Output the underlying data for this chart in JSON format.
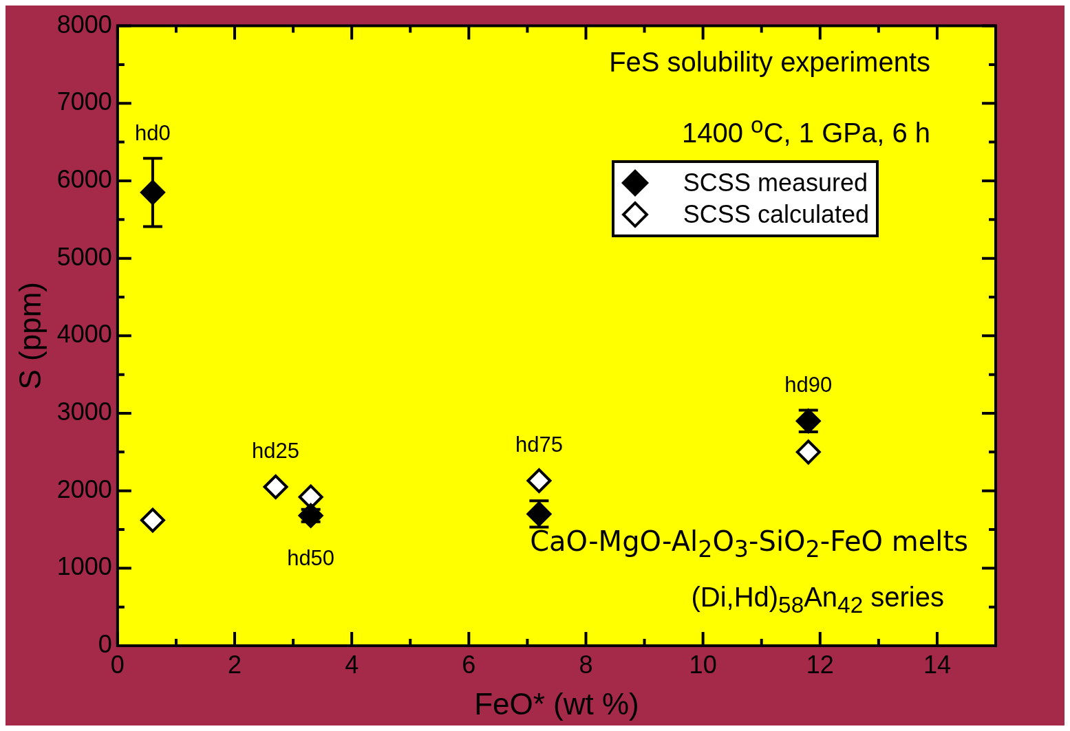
{
  "chart_data": {
    "type": "scatter",
    "xlabel": "FeO* (wt %)",
    "ylabel": "S (ppm)",
    "xlim": [
      0,
      15
    ],
    "ylim": [
      0,
      8000
    ],
    "xticks": [
      0,
      {
        "value": 1,
        "label": null
      },
      2,
      {
        "value": 3,
        "label": null
      },
      4,
      {
        "value": 5,
        "label": null
      },
      6,
      {
        "value": 7,
        "label": null
      },
      8,
      {
        "value": 9,
        "label": null
      },
      10,
      {
        "value": 11,
        "label": null
      },
      12,
      {
        "value": 13,
        "label": null
      },
      14,
      {
        "value": 15,
        "label": null
      }
    ],
    "yticks": [
      0,
      {
        "value": 500,
        "label": null
      },
      1000,
      {
        "value": 1500,
        "label": null
      },
      2000,
      {
        "value": 2500,
        "label": null
      },
      3000,
      {
        "value": 3500,
        "label": null
      },
      4000,
      {
        "value": 4500,
        "label": null
      },
      5000,
      {
        "value": 5500,
        "label": null
      },
      6000,
      {
        "value": 6500,
        "label": null
      },
      7000,
      {
        "value": 7500,
        "label": null
      },
      8000
    ],
    "grid": false,
    "legend": "top right",
    "marker": "diamond",
    "series": [
      {
        "name": "SCSS measured",
        "color": "#000000",
        "x": [
          0.6,
          3.3,
          7.2,
          11.8
        ],
        "values": [
          5850,
          1680,
          1700,
          2900
        ],
        "errors": [
          440,
          80,
          170,
          140
        ]
      },
      {
        "name": "SCSS calculated",
        "color": "#ffffff",
        "x": [
          0.6,
          2.7,
          3.3,
          7.2,
          11.8
        ],
        "values": [
          1620,
          2050,
          1920,
          2130,
          2500
        ]
      }
    ],
    "annotations": [
      "FeS solubility experiments",
      "1400 $^{o}$C, 1 GPa, 6 h",
      "CaO-MgO-Al$_{2}$O$_{3}$-SiO$_{2}$-FeO melts",
      "(Di,Hd)$_{58}$An$_{42}$ series",
      {
        "text": "hd0",
        "x": 0.6,
        "y": 5850
      },
      {
        "text": "hd25",
        "x": 2.7,
        "y": 2050
      },
      {
        "text": "hd50",
        "x": 3.3,
        "y": 1680
      },
      {
        "text": "hd75",
        "x": 7.2,
        "y": 2130
      },
      {
        "text": "hd90",
        "x": 11.8,
        "y": 2900
      }
    ]
  }
}
